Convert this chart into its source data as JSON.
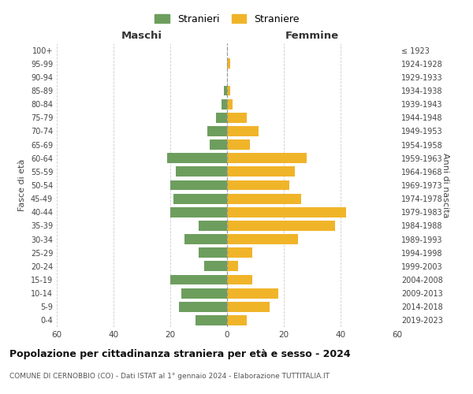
{
  "age_groups": [
    "0-4",
    "5-9",
    "10-14",
    "15-19",
    "20-24",
    "25-29",
    "30-34",
    "35-39",
    "40-44",
    "45-49",
    "50-54",
    "55-59",
    "60-64",
    "65-69",
    "70-74",
    "75-79",
    "80-84",
    "85-89",
    "90-94",
    "95-99",
    "100+"
  ],
  "birth_years": [
    "2019-2023",
    "2014-2018",
    "2009-2013",
    "2004-2008",
    "1999-2003",
    "1994-1998",
    "1989-1993",
    "1984-1988",
    "1979-1983",
    "1974-1978",
    "1969-1973",
    "1964-1968",
    "1959-1963",
    "1954-1958",
    "1949-1953",
    "1944-1948",
    "1939-1943",
    "1934-1938",
    "1929-1933",
    "1924-1928",
    "≤ 1923"
  ],
  "males": [
    11,
    17,
    16,
    20,
    8,
    10,
    15,
    10,
    20,
    19,
    20,
    18,
    21,
    6,
    7,
    4,
    2,
    1,
    0,
    0,
    0
  ],
  "females": [
    7,
    15,
    18,
    9,
    4,
    9,
    25,
    38,
    42,
    26,
    22,
    24,
    28,
    8,
    11,
    7,
    2,
    1,
    0,
    1,
    0
  ],
  "male_color": "#6d9e5e",
  "female_color": "#f0b429",
  "title": "Popolazione per cittadinanza straniera per età e sesso - 2024",
  "subtitle": "COMUNE DI CERNOBBIO (CO) - Dati ISTAT al 1° gennaio 2024 - Elaborazione TUTTITALIA.IT",
  "xlabel_left": "Maschi",
  "xlabel_right": "Femmine",
  "ylabel_left": "Fasce di età",
  "ylabel_right": "Anni di nascita",
  "legend_male": "Stranieri",
  "legend_female": "Straniere",
  "xlim": 60,
  "background_color": "#ffffff",
  "grid_color": "#cccccc"
}
